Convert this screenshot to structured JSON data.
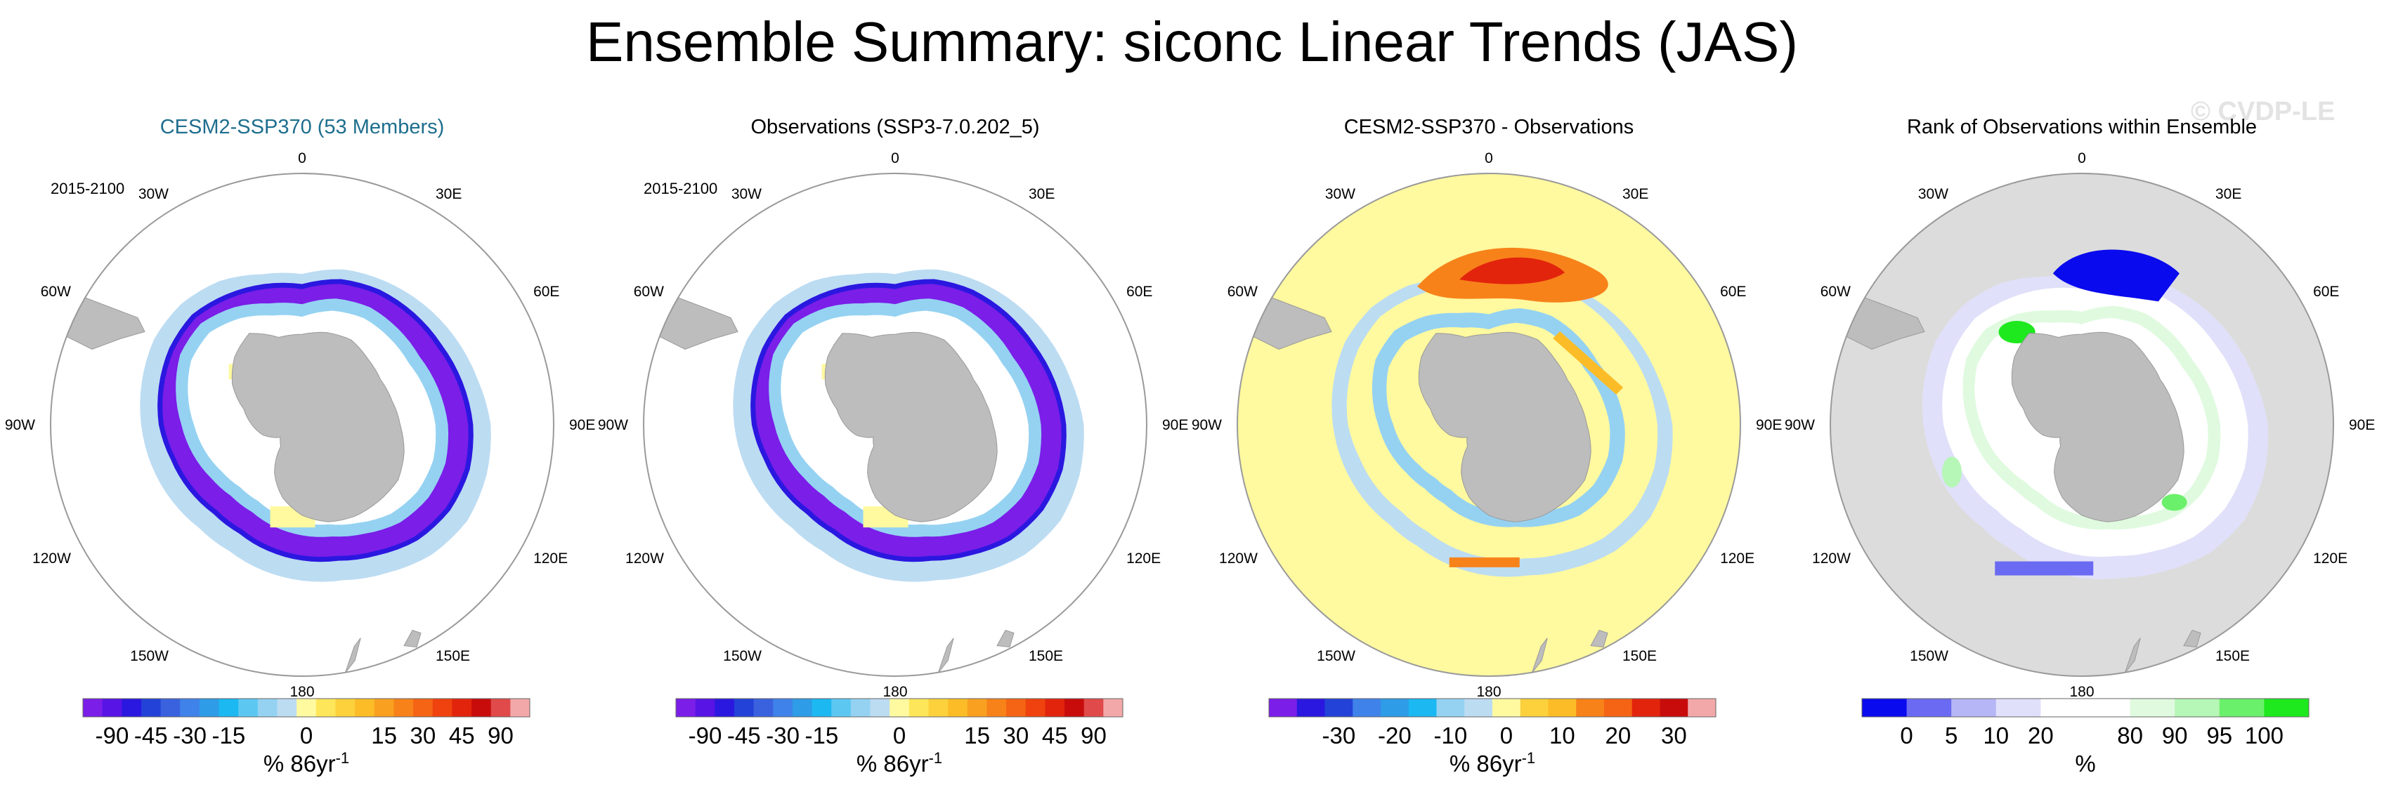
{
  "title": "Ensemble Summary: siconc Linear Trends (JAS)",
  "watermark": "© CVDP-LE",
  "chart_data": [
    {
      "type": "heatmap",
      "projection": "south-polar-stereographic",
      "title": "CESM2-SSP370 (53 Members)",
      "title_color": "#1e6e8e",
      "period": "2015-2100",
      "lon_labels": [
        "0",
        "30E",
        "60E",
        "90E",
        "120E",
        "150E",
        "180",
        "150W",
        "120W",
        "90W",
        "60W",
        "30W"
      ],
      "ocean_color": "#ffffff",
      "field": "ssp_trend",
      "colorbar": {
        "colors": [
          "#7a1ee8",
          "#5714e5",
          "#2a18e0",
          "#2342d8",
          "#3a62de",
          "#3f82ea",
          "#2e9ce6",
          "#1cb8f2",
          "#5cc8f2",
          "#95d2f2",
          "#bcdcf2",
          "#fff9a0",
          "#fee65a",
          "#fcd13c",
          "#fbbc28",
          "#f9a020",
          "#f7821a",
          "#f46414",
          "#ef420e",
          "#e2240c",
          "#c80c0c",
          "#e04a4a",
          "#f2a8a8"
        ],
        "ticks": [
          "-90",
          "-45",
          "-30",
          "-15",
          "0",
          "15",
          "30",
          "45",
          "90"
        ],
        "unit": "% 86yr-1"
      }
    },
    {
      "type": "heatmap",
      "projection": "south-polar-stereographic",
      "title": "Observations (SSP3-7.0.202_5)",
      "title_color": "#000000",
      "period": "2015-2100",
      "lon_labels": [
        "0",
        "30E",
        "60E",
        "90E",
        "120E",
        "150E",
        "180",
        "150W",
        "120W",
        "90W",
        "60W",
        "30W"
      ],
      "ocean_color": "#ffffff",
      "field": "ssp_trend",
      "colorbar": {
        "colors": [
          "#7a1ee8",
          "#5714e5",
          "#2a18e0",
          "#2342d8",
          "#3a62de",
          "#3f82ea",
          "#2e9ce6",
          "#1cb8f2",
          "#5cc8f2",
          "#95d2f2",
          "#bcdcf2",
          "#fff9a0",
          "#fee65a",
          "#fcd13c",
          "#fbbc28",
          "#f9a020",
          "#f7821a",
          "#f46414",
          "#ef420e",
          "#e2240c",
          "#c80c0c",
          "#e04a4a",
          "#f2a8a8"
        ],
        "ticks": [
          "-90",
          "-45",
          "-30",
          "-15",
          "0",
          "15",
          "30",
          "45",
          "90"
        ],
        "unit": "% 86yr-1"
      }
    },
    {
      "type": "heatmap",
      "projection": "south-polar-stereographic",
      "title": "CESM2-SSP370 - Observations",
      "title_color": "#000000",
      "period": "",
      "lon_labels": [
        "0",
        "30E",
        "60E",
        "90E",
        "120E",
        "150E",
        "180",
        "150W",
        "120W",
        "90W",
        "60W",
        "30W"
      ],
      "ocean_color": "#fff9a0",
      "field": "difference",
      "colorbar": {
        "colors": [
          "#7a1ee8",
          "#2a18e0",
          "#2342d8",
          "#3f82ea",
          "#2e9ce6",
          "#1cb8f2",
          "#95d2f2",
          "#bcdcf2",
          "#fff9a0",
          "#fcd13c",
          "#fbbc28",
          "#f7821a",
          "#f46414",
          "#e2240c",
          "#c80c0c",
          "#f2a8a8"
        ],
        "ticks": [
          "-30",
          "-20",
          "-10",
          "0",
          "10",
          "20",
          "30"
        ],
        "unit": "% 86yr-1"
      }
    },
    {
      "type": "heatmap",
      "projection": "south-polar-stereographic",
      "title": "Rank of Observations within Ensemble",
      "title_color": "#000000",
      "period": "",
      "lon_labels": [
        "0",
        "30E",
        "60E",
        "90E",
        "120E",
        "150E",
        "180",
        "150W",
        "120W",
        "90W",
        "60W",
        "30W"
      ],
      "ocean_color": "#dcdcdc",
      "field": "rank",
      "colorbar": {
        "colors": [
          "#0a0aee",
          "#6a6af2",
          "#b6b6f6",
          "#e0e0fa",
          "#ffffff",
          "#ffffff",
          "#e0fae0",
          "#b6f6b6",
          "#6af06a",
          "#1ee81e"
        ],
        "ticks": [
          "0",
          "5",
          "10",
          "20",
          "80",
          "90",
          "95",
          "100"
        ],
        "unit": "%"
      }
    }
  ]
}
